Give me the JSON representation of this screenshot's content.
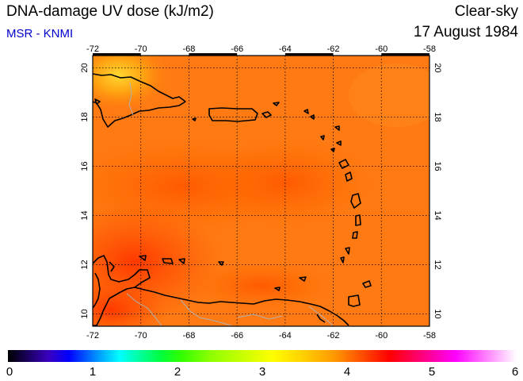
{
  "header": {
    "title": "DNA-damage UV dose (kJ/m2)",
    "credit": "MSR - KNMI",
    "condition": "Clear-sky",
    "date": "17 August 1984"
  },
  "map": {
    "lon_ticks": [
      "-72",
      "-70",
      "-68",
      "-66",
      "-64",
      "-62",
      "-60",
      "-58"
    ],
    "lat_ticks": [
      "20",
      "18",
      "16",
      "14",
      "12",
      "10"
    ],
    "lon_range": [
      -72,
      -58
    ],
    "lat_range": [
      9.5,
      20.5
    ],
    "field_colors": {
      "main": "#ff7a10",
      "high": "#ff5a00",
      "peak": "#ffc820",
      "low_south": "#ff3c00"
    }
  },
  "colorbar": {
    "labels": [
      "0",
      "1",
      "2",
      "3",
      "4",
      "5",
      "6"
    ],
    "range": [
      0,
      6
    ]
  }
}
